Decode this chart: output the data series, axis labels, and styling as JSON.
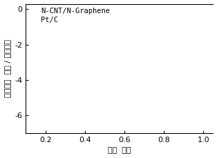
{
  "title": "",
  "xlabel": "电势  伏特",
  "ylabel": "电流密度  毫安 / 平方厘米",
  "xlim": [
    0.1,
    1.05
  ],
  "ylim": [
    -7,
    0.3
  ],
  "xticks": [
    0.2,
    0.4,
    0.6,
    0.8,
    1.0
  ],
  "yticks": [
    0,
    -2,
    -4,
    -6
  ],
  "xtick_labels": [
    "0.2",
    "0.4",
    "0.6",
    "0.8",
    "1.0"
  ],
  "ytick_labels": [
    "0",
    "-2",
    "-4",
    "-6"
  ],
  "legend_labels": [
    "N-CNT/N-Graphene",
    "Pt/C"
  ],
  "bg_color": "#ffffff",
  "axes_color": "#000000",
  "tick_fontsize": 8,
  "label_fontsize": 8,
  "legend_fontsize": 7.5
}
